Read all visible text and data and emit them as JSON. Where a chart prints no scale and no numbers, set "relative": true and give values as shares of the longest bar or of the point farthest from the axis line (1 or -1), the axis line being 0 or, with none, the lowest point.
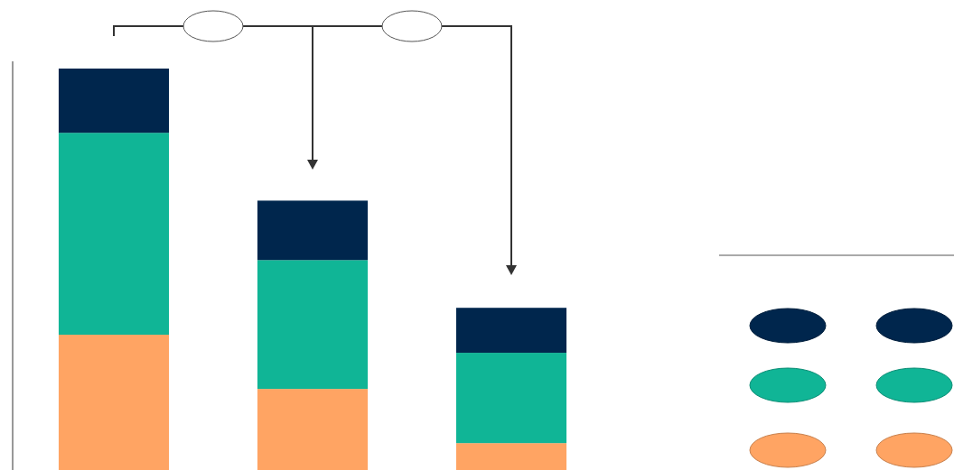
{
  "chart_data": {
    "type": "bar",
    "relative": true,
    "stacked": true,
    "categories": [
      null,
      null,
      null
    ],
    "series": [
      {
        "color": "#ffa463",
        "values": [
          0.337,
          0.202,
          0.067
        ]
      },
      {
        "color": "#10b596",
        "values": [
          0.503,
          0.321,
          0.225
        ]
      },
      {
        "color": "#00264d",
        "values": [
          0.16,
          0.148,
          0.112
        ]
      }
    ]
  }
}
